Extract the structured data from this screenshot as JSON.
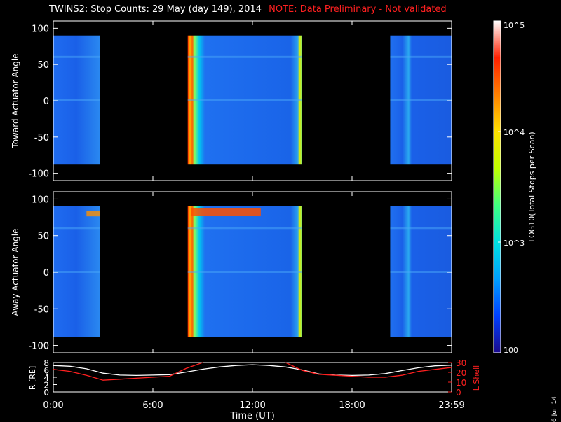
{
  "title": "TWINS2: Stop Counts: 29 May (day 149), 2014",
  "note": "NOTE: Data Preliminary - Not validated",
  "date_stamp": "6 Jun 14",
  "chart_data": [
    {
      "type": "heatmap",
      "ylabel": "Toward Actuator Angle",
      "ylim": [
        -110,
        110
      ],
      "yticks": [
        100,
        50,
        0,
        -50,
        -100
      ],
      "xlim": [
        0,
        24
      ],
      "data_segments_hours": [
        [
          0,
          2.8
        ],
        [
          8.1,
          15.0
        ],
        [
          20.3,
          24
        ]
      ]
    },
    {
      "type": "heatmap",
      "ylabel": "Away Actuator Angle",
      "ylim": [
        -110,
        110
      ],
      "yticks": [
        100,
        50,
        0,
        -50,
        -100
      ],
      "xlim": [
        0,
        24
      ],
      "data_segments_hours": [
        [
          0,
          2.8
        ],
        [
          8.1,
          15.0
        ],
        [
          20.3,
          24
        ]
      ]
    },
    {
      "type": "line",
      "ylabel_left": "R [RE]",
      "ylabel_right": "L Shell",
      "ylim_left": [
        0,
        8
      ],
      "yticks_left": [
        8,
        6,
        4,
        2,
        0
      ],
      "ylim_right": [
        0,
        30
      ],
      "yticks_right": [
        30,
        20,
        10,
        0
      ],
      "x": [
        0,
        1,
        2,
        3,
        4,
        5,
        6,
        7,
        8,
        9,
        10,
        11,
        12,
        13,
        14,
        15,
        16,
        17,
        18,
        19,
        20,
        21,
        22,
        23,
        24
      ],
      "series": [
        {
          "name": "R",
          "axis": "left",
          "color": "#ffffff",
          "values": [
            7.2,
            7.0,
            6.3,
            5.1,
            4.6,
            4.5,
            4.6,
            4.7,
            5.4,
            6.2,
            6.8,
            7.2,
            7.4,
            7.2,
            6.8,
            6.0,
            4.9,
            4.6,
            4.5,
            4.6,
            5.0,
            5.8,
            6.6,
            7.1,
            7.3
          ]
        },
        {
          "name": "L Shell",
          "axis": "right",
          "color": "#ff2020",
          "values": [
            23,
            21,
            17,
            12,
            13,
            14,
            15,
            16,
            24,
            30,
            null,
            null,
            null,
            null,
            30,
            22,
            18,
            17,
            16,
            15,
            15,
            17,
            21,
            23,
            25
          ]
        }
      ],
      "xlabel": "Time (UT)",
      "xticks": [
        "0:00",
        "6:00",
        "12:00",
        "18:00",
        "23:59"
      ]
    }
  ],
  "colorbar": {
    "label": "LOG10(Total Stops per Scan)",
    "label_parts": {
      "pre": "LOG",
      "sub": "10",
      "post": "(Total Stops per Scan)"
    },
    "ticks": [
      {
        "value": 100000,
        "label": "10^5"
      },
      {
        "value": 10000,
        "label": "10^4"
      },
      {
        "value": 1000,
        "label": "10^3"
      },
      {
        "value": 100,
        "label": "100"
      }
    ],
    "colors": [
      "#1a0a8c",
      "#0040ff",
      "#00a0ff",
      "#00e0e0",
      "#40ff80",
      "#c0ff00",
      "#ffe000",
      "#ff8000",
      "#ff2000",
      "#ffffff"
    ]
  }
}
